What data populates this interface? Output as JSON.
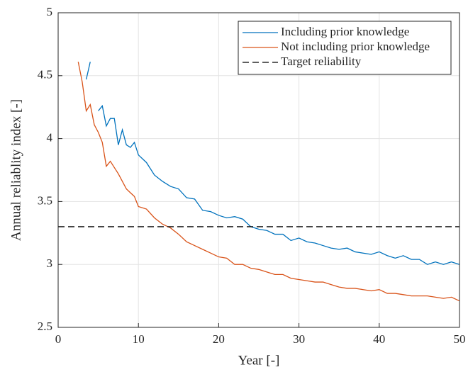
{
  "chart_data": {
    "type": "line",
    "xlabel": "Year [-]",
    "ylabel": "Annual reliablity index [-]",
    "x": [
      2.5,
      3,
      3.5,
      4,
      4.5,
      5,
      5.5,
      6,
      6.5,
      7,
      7.5,
      8,
      8.5,
      9,
      9.5,
      10,
      11,
      12,
      13,
      14,
      15,
      16,
      17,
      18,
      19,
      20,
      21,
      22,
      23,
      24,
      25,
      26,
      27,
      28,
      29,
      30,
      31,
      32,
      33,
      34,
      35,
      36,
      37,
      38,
      39,
      40,
      41,
      42,
      43,
      44,
      45,
      46,
      47,
      48,
      49,
      50
    ],
    "series": [
      {
        "name": "Including prior knowledge",
        "color": "#0072bd",
        "values": [
          null,
          null,
          4.47,
          4.61,
          null,
          4.22,
          4.26,
          4.1,
          4.16,
          4.16,
          3.95,
          4.07,
          3.95,
          3.93,
          3.97,
          3.87,
          3.81,
          3.71,
          3.66,
          3.62,
          3.6,
          3.53,
          3.52,
          3.43,
          3.42,
          3.39,
          3.37,
          3.38,
          3.36,
          3.3,
          3.28,
          3.27,
          3.24,
          3.24,
          3.19,
          3.21,
          3.18,
          3.17,
          3.15,
          3.13,
          3.12,
          3.13,
          3.1,
          3.09,
          3.08,
          3.1,
          3.07,
          3.05,
          3.07,
          3.04,
          3.04,
          3.0,
          3.02,
          3.0,
          3.02,
          3.0
        ]
      },
      {
        "name": "Not including prior knowledge",
        "color": "#d95319",
        "values": [
          4.61,
          4.45,
          4.22,
          4.27,
          4.11,
          4.05,
          3.97,
          3.78,
          3.82,
          3.77,
          3.72,
          3.66,
          3.6,
          3.57,
          3.54,
          3.46,
          3.44,
          3.37,
          3.32,
          3.29,
          3.24,
          3.18,
          3.15,
          3.12,
          3.09,
          3.06,
          3.05,
          3.0,
          3.0,
          2.97,
          2.96,
          2.94,
          2.92,
          2.92,
          2.89,
          2.88,
          2.87,
          2.86,
          2.86,
          2.84,
          2.82,
          2.81,
          2.81,
          2.8,
          2.79,
          2.8,
          2.77,
          2.77,
          2.76,
          2.75,
          2.75,
          2.75,
          2.74,
          2.73,
          2.74,
          2.71
        ]
      }
    ],
    "reference_line": {
      "name": "Target reliability",
      "value": 3.3,
      "color": "#000000",
      "dash": true
    },
    "xlim": [
      0,
      50
    ],
    "xticks": [
      0,
      10,
      20,
      30,
      40,
      50
    ],
    "ylim": [
      2.5,
      5
    ],
    "yticks": [
      2.5,
      3,
      3.5,
      4,
      4.5,
      5
    ],
    "grid": true,
    "legend": "upper right"
  }
}
